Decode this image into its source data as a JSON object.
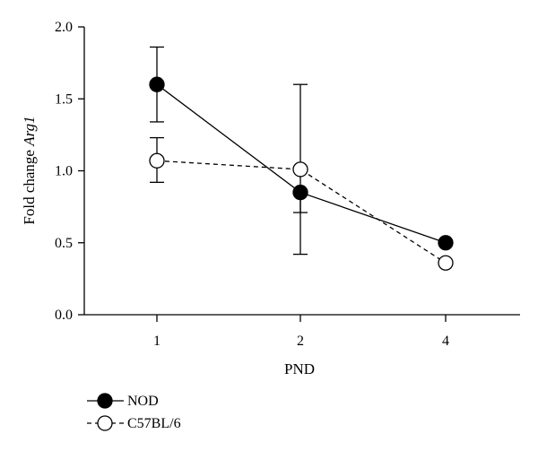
{
  "chart_data": {
    "type": "line",
    "xlabel": "PND",
    "ylabel_prefix": "Fold change ",
    "ylabel_gene": "Arg1",
    "categories": [
      "1",
      "2",
      "4"
    ],
    "ylim": [
      0,
      2
    ],
    "y_ticks": [
      "0.0",
      "0.5",
      "1.0",
      "1.5",
      "2.0"
    ],
    "grid": false,
    "legend_position": "bottom-left",
    "series": [
      {
        "name": "NOD",
        "marker": "filled-circle",
        "line_style": "solid",
        "values": [
          1.6,
          0.85,
          0.5
        ],
        "error_upper": [
          1.86,
          0.85,
          0.5
        ],
        "error_lower": [
          1.34,
          0.42,
          0.5
        ],
        "color": "#000000"
      },
      {
        "name": "C57BL/6",
        "marker": "open-circle",
        "line_style": "dashed",
        "values": [
          1.07,
          1.01,
          0.36
        ],
        "error_upper": [
          1.23,
          1.6,
          0.36
        ],
        "error_lower": [
          0.92,
          0.71,
          0.36
        ],
        "color": "#000000"
      }
    ]
  }
}
